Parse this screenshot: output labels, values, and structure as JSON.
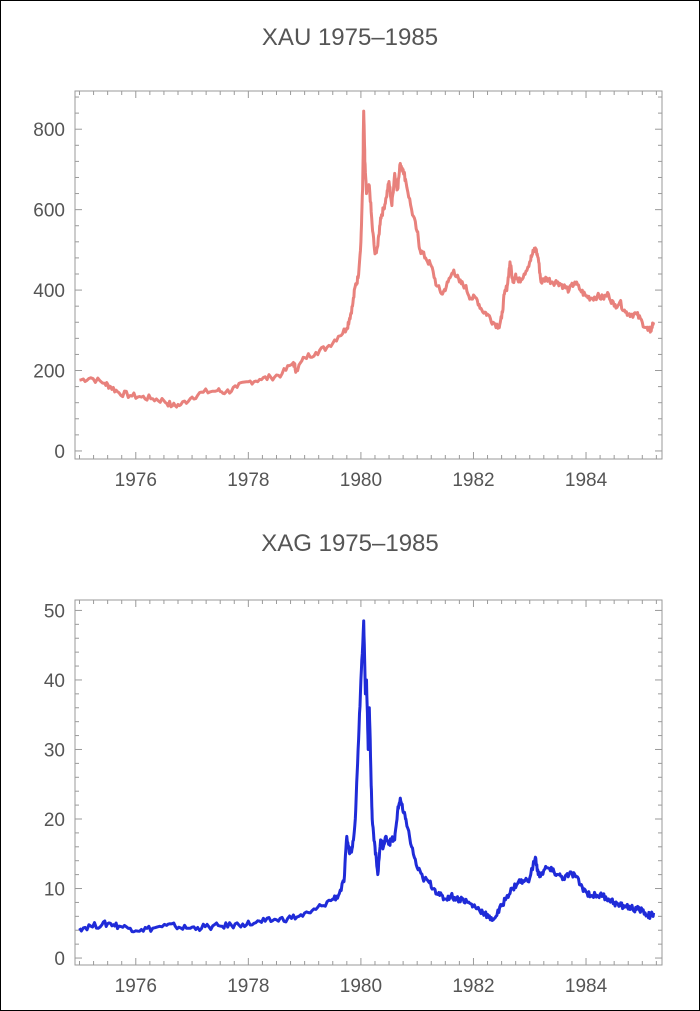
{
  "chart_data": [
    {
      "type": "line",
      "title": "XAU 1975–1985",
      "xlabel": "",
      "ylabel": "",
      "xlim": [
        1974.92,
        1985.35
      ],
      "ylim": [
        -20,
        895
      ],
      "xticks": [
        1976,
        1978,
        1980,
        1982,
        1984
      ],
      "xtick_labels": [
        "1976",
        "1978",
        "1980",
        "1982",
        "1984"
      ],
      "yticks": [
        0,
        200,
        400,
        600,
        800
      ],
      "ytick_labels": [
        "0",
        "200",
        "400",
        "600",
        "800"
      ],
      "grid": false,
      "line_color": "#e8817c",
      "series": [
        {
          "x": [
            1975.0,
            1975.2,
            1975.45,
            1975.55,
            1975.7,
            1975.9,
            1976.1,
            1976.3,
            1976.5,
            1976.65,
            1976.8,
            1977.0,
            1977.2,
            1977.45,
            1977.6,
            1977.8,
            1978.0,
            1978.2,
            1978.4,
            1978.6,
            1978.8,
            1978.85,
            1979.0,
            1979.2,
            1979.4,
            1979.6,
            1979.75,
            1979.8,
            1979.85,
            1979.9,
            1979.95,
            1980.0,
            1980.03,
            1980.05,
            1980.07,
            1980.1,
            1980.15,
            1980.2,
            1980.25,
            1980.3,
            1980.35,
            1980.4,
            1980.45,
            1980.5,
            1980.55,
            1980.6,
            1980.65,
            1980.7,
            1980.75,
            1980.8,
            1980.9,
            1981.0,
            1981.05,
            1981.15,
            1981.25,
            1981.35,
            1981.45,
            1981.55,
            1981.65,
            1981.75,
            1981.85,
            1981.95,
            1982.05,
            1982.15,
            1982.25,
            1982.35,
            1982.45,
            1982.5,
            1982.55,
            1982.6,
            1982.65,
            1982.7,
            1982.75,
            1982.8,
            1982.9,
            1983.0,
            1983.05,
            1983.1,
            1983.15,
            1983.2,
            1983.3,
            1983.4,
            1983.5,
            1983.6,
            1983.7,
            1983.8,
            1983.9,
            1984.0,
            1984.1,
            1984.2,
            1984.3,
            1984.4,
            1984.5,
            1984.6,
            1984.7,
            1984.8,
            1984.9,
            1985.0,
            1985.1,
            1985.15,
            1985.2
          ],
          "y": [
            176,
            182,
            168,
            160,
            145,
            138,
            134,
            130,
            125,
            112,
            115,
            134,
            146,
            150,
            146,
            158,
            172,
            178,
            183,
            192,
            220,
            200,
            232,
            245,
            258,
            285,
            305,
            330,
            360,
            410,
            430,
            520,
            650,
            845,
            720,
            640,
            660,
            560,
            490,
            510,
            580,
            600,
            630,
            670,
            610,
            690,
            650,
            715,
            700,
            670,
            600,
            545,
            500,
            480,
            460,
            410,
            390,
            420,
            450,
            420,
            410,
            380,
            380,
            350,
            340,
            320,
            310,
            330,
            390,
            410,
            470,
            420,
            440,
            420,
            440,
            470,
            490,
            505,
            480,
            420,
            430,
            420,
            420,
            410,
            400,
            420,
            400,
            385,
            380,
            385,
            380,
            390,
            360,
            370,
            345,
            340,
            340,
            320,
            300,
            300,
            320
          ]
        }
      ]
    },
    {
      "type": "line",
      "title": "XAG 1975–1985",
      "xlabel": "",
      "ylabel": "",
      "xlim": [
        1974.92,
        1985.35
      ],
      "ylim": [
        -1,
        51.5
      ],
      "xticks": [
        1976,
        1978,
        1980,
        1982,
        1984
      ],
      "xtick_labels": [
        "1976",
        "1978",
        "1980",
        "1982",
        "1984"
      ],
      "yticks": [
        0,
        10,
        20,
        30,
        40,
        50
      ],
      "ytick_labels": [
        "0",
        "10",
        "20",
        "30",
        "40",
        "50"
      ],
      "grid": false,
      "line_color": "#1f2bd8",
      "series": [
        {
          "x": [
            1975.0,
            1975.2,
            1975.4,
            1975.55,
            1975.7,
            1975.9,
            1976.1,
            1976.3,
            1976.55,
            1976.7,
            1976.9,
            1977.1,
            1977.3,
            1977.5,
            1977.7,
            1977.9,
            1978.1,
            1978.3,
            1978.5,
            1978.7,
            1978.9,
            1979.1,
            1979.3,
            1979.5,
            1979.6,
            1979.7,
            1979.75,
            1979.8,
            1979.85,
            1979.9,
            1979.95,
            1980.0,
            1980.05,
            1980.08,
            1980.1,
            1980.13,
            1980.15,
            1980.18,
            1980.2,
            1980.25,
            1980.3,
            1980.35,
            1980.4,
            1980.45,
            1980.5,
            1980.55,
            1980.6,
            1980.65,
            1980.7,
            1980.75,
            1980.8,
            1980.9,
            1981.0,
            1981.1,
            1981.2,
            1981.3,
            1981.4,
            1981.5,
            1981.6,
            1981.7,
            1981.8,
            1981.9,
            1982.0,
            1982.1,
            1982.2,
            1982.3,
            1982.4,
            1982.5,
            1982.6,
            1982.7,
            1982.8,
            1982.9,
            1983.0,
            1983.1,
            1983.15,
            1983.2,
            1983.3,
            1983.4,
            1983.5,
            1983.6,
            1983.7,
            1983.8,
            1983.9,
            1984.0,
            1984.1,
            1984.2,
            1984.3,
            1984.4,
            1984.5,
            1984.6,
            1984.7,
            1984.8,
            1984.9,
            1985.0,
            1985.1,
            1985.15,
            1985.2
          ],
          "y": [
            4.3,
            4.6,
            4.8,
            5.0,
            4.6,
            4.3,
            4.1,
            4.3,
            4.7,
            4.6,
            4.3,
            4.4,
            4.5,
            4.6,
            4.7,
            4.9,
            5.0,
            5.3,
            5.5,
            5.7,
            6.0,
            6.5,
            7.5,
            8.5,
            9.0,
            11.0,
            17.5,
            15.0,
            16.0,
            20.0,
            30.0,
            40.0,
            48.5,
            38.0,
            40.0,
            30.0,
            36.0,
            26.0,
            20.0,
            16.0,
            12.0,
            17.0,
            16.0,
            17.5,
            16.5,
            17.0,
            17.0,
            21.0,
            23.0,
            21.0,
            20.0,
            16.0,
            13.0,
            11.5,
            11.0,
            10.0,
            9.0,
            8.5,
            9.0,
            8.5,
            8.5,
            8.0,
            7.5,
            7.0,
            6.5,
            5.5,
            6.0,
            7.5,
            9.0,
            10.0,
            11.0,
            11.0,
            11.5,
            14.5,
            12.0,
            12.0,
            13.0,
            12.5,
            12.0,
            11.5,
            12.0,
            12.0,
            10.5,
            9.5,
            9.0,
            9.0,
            9.0,
            8.5,
            8.0,
            7.5,
            7.5,
            7.2,
            7.0,
            6.8,
            6.2,
            6.0,
            6.5
          ]
        }
      ]
    }
  ]
}
